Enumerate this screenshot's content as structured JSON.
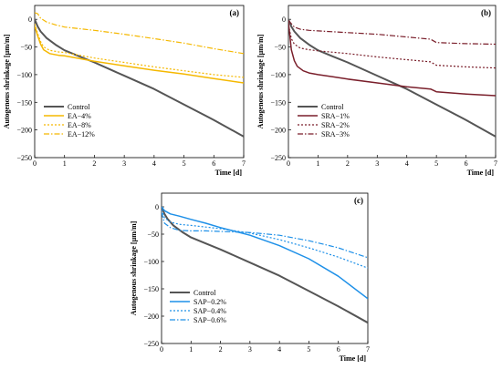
{
  "chart_data": [
    {
      "type": "line",
      "panel_label": "(a)",
      "xlabel": "Time [d]",
      "ylabel": "Autogenous shrinkage [μm/m]",
      "xlim": [
        0,
        7
      ],
      "ylim": [
        -250,
        25
      ],
      "xticks": [
        0,
        1,
        2,
        3,
        4,
        5,
        6,
        7
      ],
      "yticks": [
        0,
        -50,
        -100,
        -150,
        -200,
        -250
      ],
      "legend_position": "bottom-left",
      "series": [
        {
          "name": "Control",
          "color": "#555555",
          "dash": "solid",
          "width": 2,
          "x": [
            0,
            0.1,
            0.2,
            0.4,
            0.7,
            1,
            1.5,
            2,
            3,
            4,
            5,
            6,
            7
          ],
          "y": [
            0,
            -13,
            -22,
            -34,
            -46,
            -56,
            -67,
            -78,
            -102,
            -126,
            -154,
            -182,
            -212
          ]
        },
        {
          "name": "EA−4%",
          "color": "#f5b800",
          "dash": "solid",
          "width": 1.5,
          "x": [
            0,
            0.1,
            0.2,
            0.3,
            0.5,
            0.8,
            1,
            2,
            3,
            4,
            5,
            6,
            7
          ],
          "y": [
            -12,
            -30,
            -45,
            -55,
            -62,
            -65,
            -66,
            -76,
            -84,
            -92,
            -99,
            -107,
            -115
          ]
        },
        {
          "name": "EA−8%",
          "color": "#f5b800",
          "dash": "2,2",
          "width": 1.2,
          "x": [
            0,
            0.1,
            0.2,
            0.3,
            0.5,
            0.8,
            1,
            2,
            3,
            4,
            5,
            6,
            7
          ],
          "y": [
            -8,
            -26,
            -40,
            -50,
            -56,
            -59,
            -60,
            -70,
            -78,
            -86,
            -93,
            -100,
            -105
          ]
        },
        {
          "name": "EA−12%",
          "color": "#f5b800",
          "dash": "6,2,1.5,2",
          "width": 1.2,
          "x": [
            0,
            0.1,
            0.2,
            0.4,
            0.7,
            1,
            2,
            3,
            4,
            5,
            6,
            7
          ],
          "y": [
            12,
            10,
            2,
            -5,
            -10,
            -14,
            -20,
            -27,
            -35,
            -43,
            -53,
            -62
          ]
        }
      ]
    },
    {
      "type": "line",
      "panel_label": "(b)",
      "xlabel": "Time [d]",
      "ylabel": "Autogenous shrinkage [μm/m]",
      "xlim": [
        0,
        7
      ],
      "ylim": [
        -250,
        25
      ],
      "xticks": [
        0,
        1,
        2,
        3,
        4,
        5,
        6,
        7
      ],
      "yticks": [
        0,
        -50,
        -100,
        -150,
        -200,
        -250
      ],
      "legend_position": "bottom-left",
      "series": [
        {
          "name": "Control",
          "color": "#555555",
          "dash": "solid",
          "width": 2,
          "x": [
            0,
            0.1,
            0.2,
            0.4,
            0.7,
            1,
            1.5,
            2,
            3,
            4,
            5,
            6,
            7
          ],
          "y": [
            0,
            -13,
            -22,
            -34,
            -46,
            -56,
            -67,
            -78,
            -102,
            -126,
            -154,
            -182,
            -212
          ]
        },
        {
          "name": "SRA−1%",
          "color": "#7a1f2b",
          "dash": "solid",
          "width": 1.5,
          "x": [
            0,
            0.05,
            0.1,
            0.2,
            0.3,
            0.5,
            0.7,
            1,
            1.5,
            2,
            3,
            4,
            4.8,
            5,
            6,
            7
          ],
          "y": [
            -5,
            -30,
            -55,
            -75,
            -85,
            -93,
            -97,
            -100,
            -104,
            -108,
            -115,
            -122,
            -126,
            -131,
            -135,
            -138
          ]
        },
        {
          "name": "SRA−2%",
          "color": "#7a1f2b",
          "dash": "2,2",
          "width": 1.2,
          "x": [
            0,
            0.1,
            0.2,
            0.4,
            0.7,
            1,
            2,
            3,
            4,
            4.8,
            5,
            6,
            7
          ],
          "y": [
            -10,
            -35,
            -45,
            -52,
            -55,
            -57,
            -62,
            -68,
            -73,
            -77,
            -83,
            -86,
            -88
          ]
        },
        {
          "name": "SRA−3%",
          "color": "#7a1f2b",
          "dash": "6,2,1.5,2",
          "width": 1.2,
          "x": [
            0,
            0.1,
            0.2,
            0.4,
            0.7,
            1,
            2,
            3,
            4,
            4.8,
            5,
            6,
            7
          ],
          "y": [
            -2,
            -8,
            -14,
            -18,
            -20,
            -21,
            -24,
            -27,
            -32,
            -36,
            -42,
            -44,
            -45
          ]
        }
      ]
    },
    {
      "type": "line",
      "panel_label": "(c)",
      "xlabel": "Time [d]",
      "ylabel": "Autogenous shrinkage [μm/m]",
      "xlim": [
        0,
        7
      ],
      "ylim": [
        -250,
        25
      ],
      "xticks": [
        0,
        1,
        2,
        3,
        4,
        5,
        6,
        7
      ],
      "yticks": [
        0,
        -50,
        -100,
        -150,
        -200,
        -250
      ],
      "legend_position": "bottom-left",
      "series": [
        {
          "name": "Control",
          "color": "#555555",
          "dash": "solid",
          "width": 2,
          "x": [
            0,
            0.1,
            0.2,
            0.4,
            0.7,
            1,
            1.5,
            2,
            3,
            4,
            5,
            6,
            7
          ],
          "y": [
            0,
            -13,
            -22,
            -34,
            -46,
            -56,
            -67,
            -78,
            -102,
            -126,
            -154,
            -182,
            -212
          ]
        },
        {
          "name": "SAP−0.2%",
          "color": "#1e90e8",
          "dash": "solid",
          "width": 1.5,
          "x": [
            0,
            0.1,
            0.3,
            0.6,
            1,
            1.5,
            2,
            3,
            4,
            5,
            6,
            7
          ],
          "y": [
            0,
            -7,
            -13,
            -17,
            -23,
            -30,
            -38,
            -52,
            -71,
            -95,
            -127,
            -168
          ]
        },
        {
          "name": "SAP−0.4%",
          "color": "#1e90e8",
          "dash": "2,2",
          "width": 1.2,
          "x": [
            0,
            0.1,
            0.3,
            0.6,
            1,
            1.5,
            2,
            3,
            4,
            5,
            6,
            7
          ],
          "y": [
            -5,
            -20,
            -28,
            -32,
            -34,
            -37,
            -40,
            -48,
            -60,
            -75,
            -92,
            -112
          ]
        },
        {
          "name": "SAP−0.6%",
          "color": "#1e90e8",
          "dash": "6,2,1.5,2",
          "width": 1.2,
          "x": [
            0,
            0.1,
            0.3,
            0.6,
            1,
            1.5,
            2,
            3,
            4,
            5,
            6,
            7
          ],
          "y": [
            -10,
            -30,
            -38,
            -43,
            -44,
            -44,
            -45,
            -47,
            -52,
            -62,
            -75,
            -93
          ]
        }
      ]
    }
  ]
}
